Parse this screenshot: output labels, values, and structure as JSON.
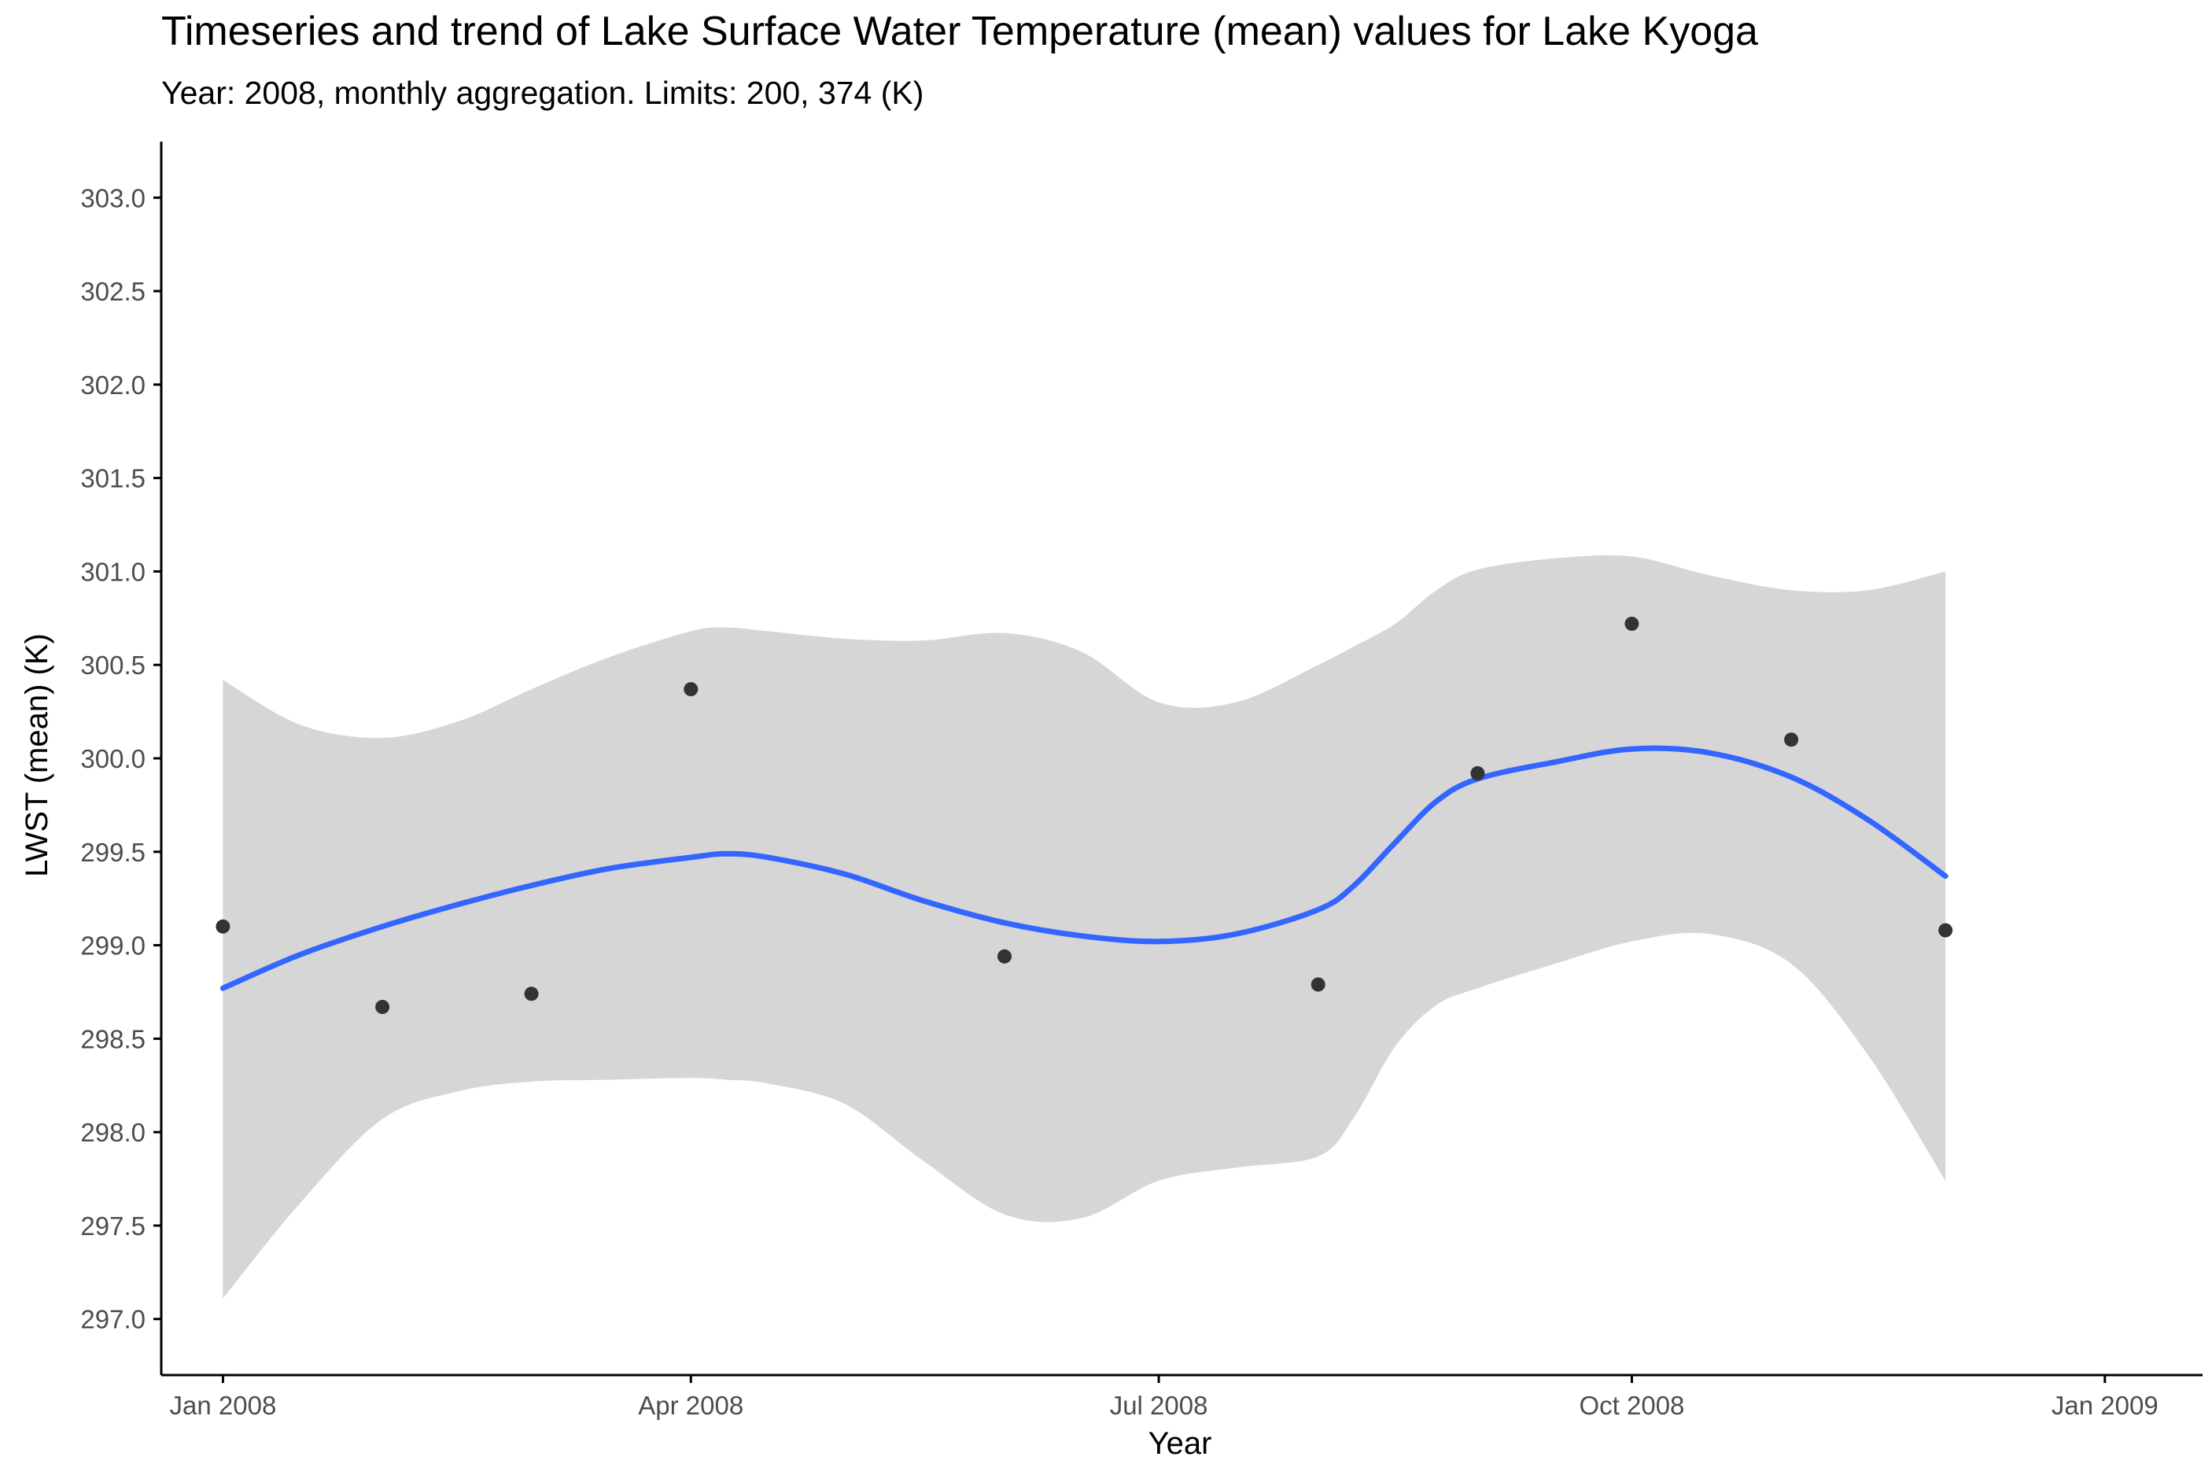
{
  "chart_data": {
    "type": "scatter",
    "title": "Timeseries and trend of Lake Surface Water Temperature (mean) values for Lake Kyoga",
    "subtitle": "Year: 2008, monthly aggregation. Limits: 200, 374 (K)",
    "xlabel": "Year",
    "ylabel": "LWST (mean) (K)",
    "xlim": [
      "2007-12-20",
      "2009-01-20"
    ],
    "ylim": [
      296.7,
      303.3
    ],
    "x_ticks": [
      "2008-01-01",
      "2008-04-01",
      "2008-07-01",
      "2008-10-01",
      "2009-01-01"
    ],
    "x_tick_labels": [
      "Jan 2008",
      "Apr 2008",
      "Jul 2008",
      "Oct 2008",
      "Jan 2009"
    ],
    "y_ticks": [
      297.0,
      297.5,
      298.0,
      298.5,
      299.0,
      299.5,
      300.0,
      300.5,
      301.0,
      301.5,
      302.0,
      302.5,
      303.0
    ],
    "y_tick_labels": [
      "297.0",
      "297.5",
      "298.0",
      "298.5",
      "299.0",
      "299.5",
      "300.0",
      "300.5",
      "301.0",
      "301.5",
      "302.0",
      "302.5",
      "303.0"
    ],
    "grid": false,
    "colors": {
      "points": "#333333",
      "trend": "#3366ff",
      "ribbon": "#d6d6d6",
      "axis": "#000000"
    },
    "points": [
      {
        "x": "2008-01-01",
        "y": 299.1
      },
      {
        "x": "2008-02-01",
        "y": 298.67
      },
      {
        "x": "2008-03-01",
        "y": 298.74
      },
      {
        "x": "2008-04-01",
        "y": 300.37
      },
      {
        "x": "2008-06-01",
        "y": 298.94
      },
      {
        "x": "2008-08-01",
        "y": 298.79
      },
      {
        "x": "2008-09-01",
        "y": 299.92
      },
      {
        "x": "2008-10-01",
        "y": 300.72
      },
      {
        "x": "2008-11-01",
        "y": 300.1
      },
      {
        "x": "2008-12-01",
        "y": 299.08
      }
    ],
    "trend": [
      {
        "x": "2008-01-01",
        "y": 298.77,
        "lower": 297.11,
        "upper": 300.42
      },
      {
        "x": "2008-01-16",
        "y": 298.95,
        "lower": 297.62,
        "upper": 300.18
      },
      {
        "x": "2008-02-01",
        "y": 299.1,
        "lower": 298.07,
        "upper": 300.11
      },
      {
        "x": "2008-02-16",
        "y": 299.22,
        "lower": 298.22,
        "upper": 300.2
      },
      {
        "x": "2008-03-01",
        "y": 299.32,
        "lower": 298.27,
        "upper": 300.37
      },
      {
        "x": "2008-03-16",
        "y": 299.41,
        "lower": 298.28,
        "upper": 300.54
      },
      {
        "x": "2008-04-01",
        "y": 299.47,
        "lower": 298.29,
        "upper": 300.68
      },
      {
        "x": "2008-04-08",
        "y": 299.49,
        "lower": 298.28,
        "upper": 300.7
      },
      {
        "x": "2008-04-16",
        "y": 299.47,
        "lower": 298.26,
        "upper": 300.68
      },
      {
        "x": "2008-05-01",
        "y": 299.38,
        "lower": 298.15,
        "upper": 300.64
      },
      {
        "x": "2008-05-16",
        "y": 299.24,
        "lower": 297.85,
        "upper": 300.63
      },
      {
        "x": "2008-06-01",
        "y": 299.12,
        "lower": 297.56,
        "upper": 300.67
      },
      {
        "x": "2008-06-16",
        "y": 299.05,
        "lower": 297.54,
        "upper": 300.57
      },
      {
        "x": "2008-07-01",
        "y": 299.02,
        "lower": 297.74,
        "upper": 300.3
      },
      {
        "x": "2008-07-16",
        "y": 299.06,
        "lower": 297.81,
        "upper": 300.3
      },
      {
        "x": "2008-08-01",
        "y": 299.19,
        "lower": 297.87,
        "upper": 300.5
      },
      {
        "x": "2008-08-08",
        "y": 299.32,
        "lower": 298.08,
        "upper": 300.6
      },
      {
        "x": "2008-08-16",
        "y": 299.55,
        "lower": 298.46,
        "upper": 300.72
      },
      {
        "x": "2008-08-24",
        "y": 299.77,
        "lower": 298.68,
        "upper": 300.9
      },
      {
        "x": "2008-09-01",
        "y": 299.89,
        "lower": 298.77,
        "upper": 301.01
      },
      {
        "x": "2008-09-16",
        "y": 299.98,
        "lower": 298.9,
        "upper": 301.07
      },
      {
        "x": "2008-10-01",
        "y": 300.05,
        "lower": 299.02,
        "upper": 301.08
      },
      {
        "x": "2008-10-16",
        "y": 300.03,
        "lower": 299.06,
        "upper": 300.98
      },
      {
        "x": "2008-11-01",
        "y": 299.9,
        "lower": 298.9,
        "upper": 300.9
      },
      {
        "x": "2008-11-16",
        "y": 299.67,
        "lower": 298.41,
        "upper": 300.9
      },
      {
        "x": "2008-12-01",
        "y": 299.37,
        "lower": 297.74,
        "upper": 301.0
      }
    ]
  }
}
